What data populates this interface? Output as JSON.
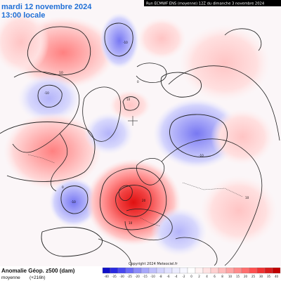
{
  "title": {
    "date": "mardi 12 novembre 2024",
    "time": "13:00 locale"
  },
  "run_info": "Run ECMWF ENS (moyenne) 12Z du dimanche 3 novembre 2024",
  "footer": {
    "parameter": "Anomalie Géop. z500 (dam)",
    "subtitle": "moyenne",
    "lead": "(+216h)",
    "copyright": "Copyright 2024 Meteociel.fr"
  },
  "colorbar": {
    "labels": [
      "-40",
      "-35",
      "-30",
      "-25",
      "-20",
      "-15",
      "-10",
      "-8",
      "-6",
      "-4",
      "-2",
      "0",
      "2",
      "4",
      "6",
      "8",
      "10",
      "15",
      "20",
      "25",
      "30",
      "35",
      "40"
    ],
    "colors": [
      "#1010c8",
      "#2a2ae0",
      "#4848f0",
      "#6b6bf6",
      "#8c8cf8",
      "#a8a8fa",
      "#c0c0fb",
      "#d2d2fc",
      "#e0e0fd",
      "#ececfe",
      "#f6f6ff",
      "#ffffff",
      "#fff2f2",
      "#ffe2e2",
      "#ffd0d0",
      "#ffbcbc",
      "#ffa4a4",
      "#ff8a8a",
      "#ff6e6e",
      "#ff5050",
      "#f03434",
      "#d81c1c",
      "#c00000"
    ]
  },
  "contour_labels": [
    {
      "id": "pacific-high",
      "text": "10"
    },
    {
      "id": "arctic-low",
      "text": "-10"
    },
    {
      "id": "canada-low",
      "text": "-10"
    },
    {
      "id": "siberia-low",
      "text": "-10"
    },
    {
      "id": "atlantic-low",
      "text": "-10"
    },
    {
      "id": "europe-high",
      "text": "20"
    },
    {
      "id": "greenland",
      "text": "10"
    },
    {
      "id": "europe-high-2",
      "text": "10"
    },
    {
      "id": "east-high",
      "text": "10"
    },
    {
      "id": "zero-1",
      "text": "0"
    },
    {
      "id": "zero-2",
      "text": "0"
    }
  ]
}
